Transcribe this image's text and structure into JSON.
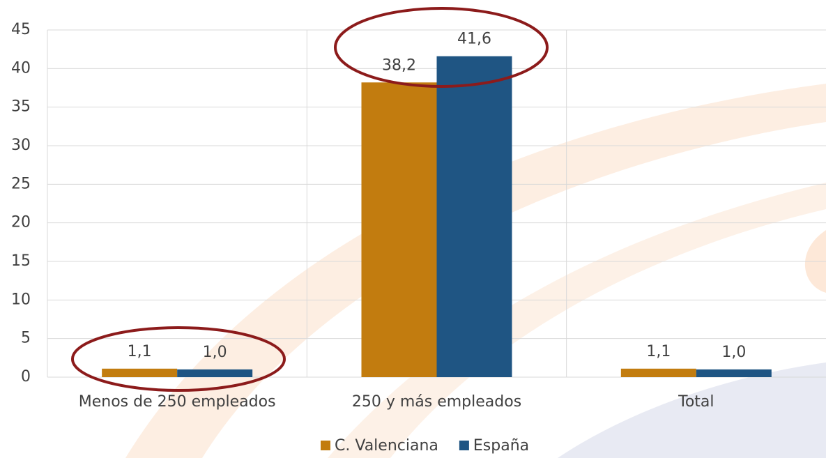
{
  "chart_data": {
    "type": "bar",
    "categories": [
      "Menos de 250 empleados",
      "250 y más empleados",
      "Total"
    ],
    "series": [
      {
        "name": "C. Valenciana",
        "color": "#c27c0f",
        "values": [
          1.1,
          38.2,
          1.1
        ],
        "value_labels": [
          "1,1",
          "38,2",
          "1,1"
        ]
      },
      {
        "name": "España",
        "color": "#1f5583",
        "values": [
          1.0,
          41.6,
          1.0
        ],
        "value_labels": [
          "1,0",
          "41,6",
          "1,0"
        ]
      }
    ],
    "ylim": [
      0,
      45
    ],
    "yticks": [
      0,
      5,
      10,
      15,
      20,
      25,
      30,
      35,
      40,
      45
    ],
    "grid": true,
    "legend": "bottom"
  }
}
